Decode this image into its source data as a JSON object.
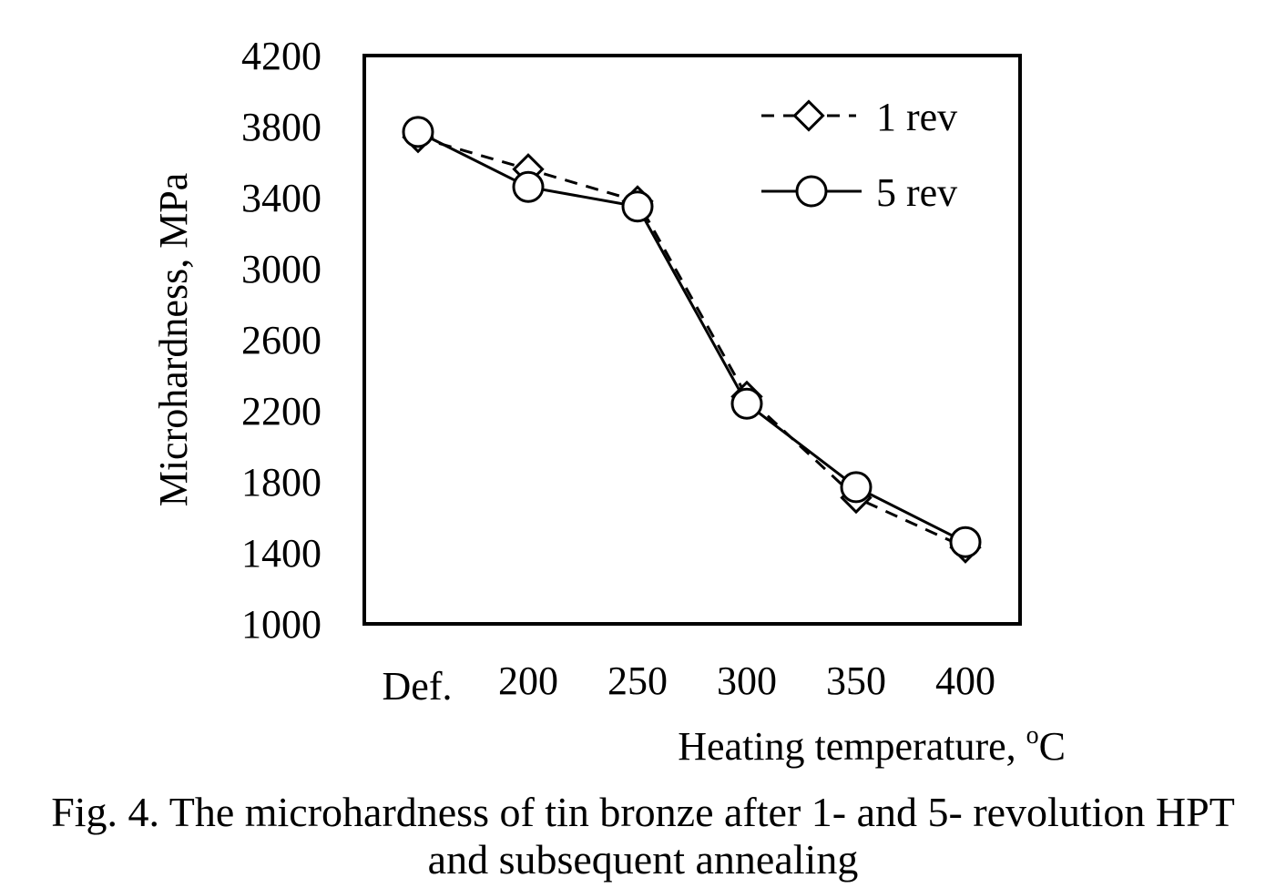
{
  "chart_data": {
    "type": "line",
    "categories": [
      "Def.",
      "200",
      "250",
      "300",
      "350",
      "400"
    ],
    "series": [
      {
        "name": "1 rev",
        "marker": "diamond",
        "line_style": "dashed",
        "values": [
          3740,
          3560,
          3380,
          2280,
          1710,
          1430
        ]
      },
      {
        "name": "5 rev",
        "marker": "circle",
        "line_style": "solid",
        "values": [
          3770,
          3460,
          3350,
          2240,
          1770,
          1460
        ]
      }
    ],
    "xlabel": "Heating temperature, ",
    "xlabel_unit": "C",
    "xlabel_superscript": "o",
    "ylabel": "Microhardness, MPa",
    "ylim": [
      1000,
      4200
    ],
    "yticks": [
      1000,
      1400,
      1800,
      2200,
      2600,
      3000,
      3400,
      3800,
      4200
    ],
    "grid": false,
    "legend_position": "top-right"
  },
  "caption": {
    "line1": "Fig. 4. The microhardness of tin bronze after 1- and 5- revolution HPT",
    "line2": "and subsequent annealing"
  },
  "colors": {
    "line": "#000000",
    "background": "#ffffff"
  }
}
